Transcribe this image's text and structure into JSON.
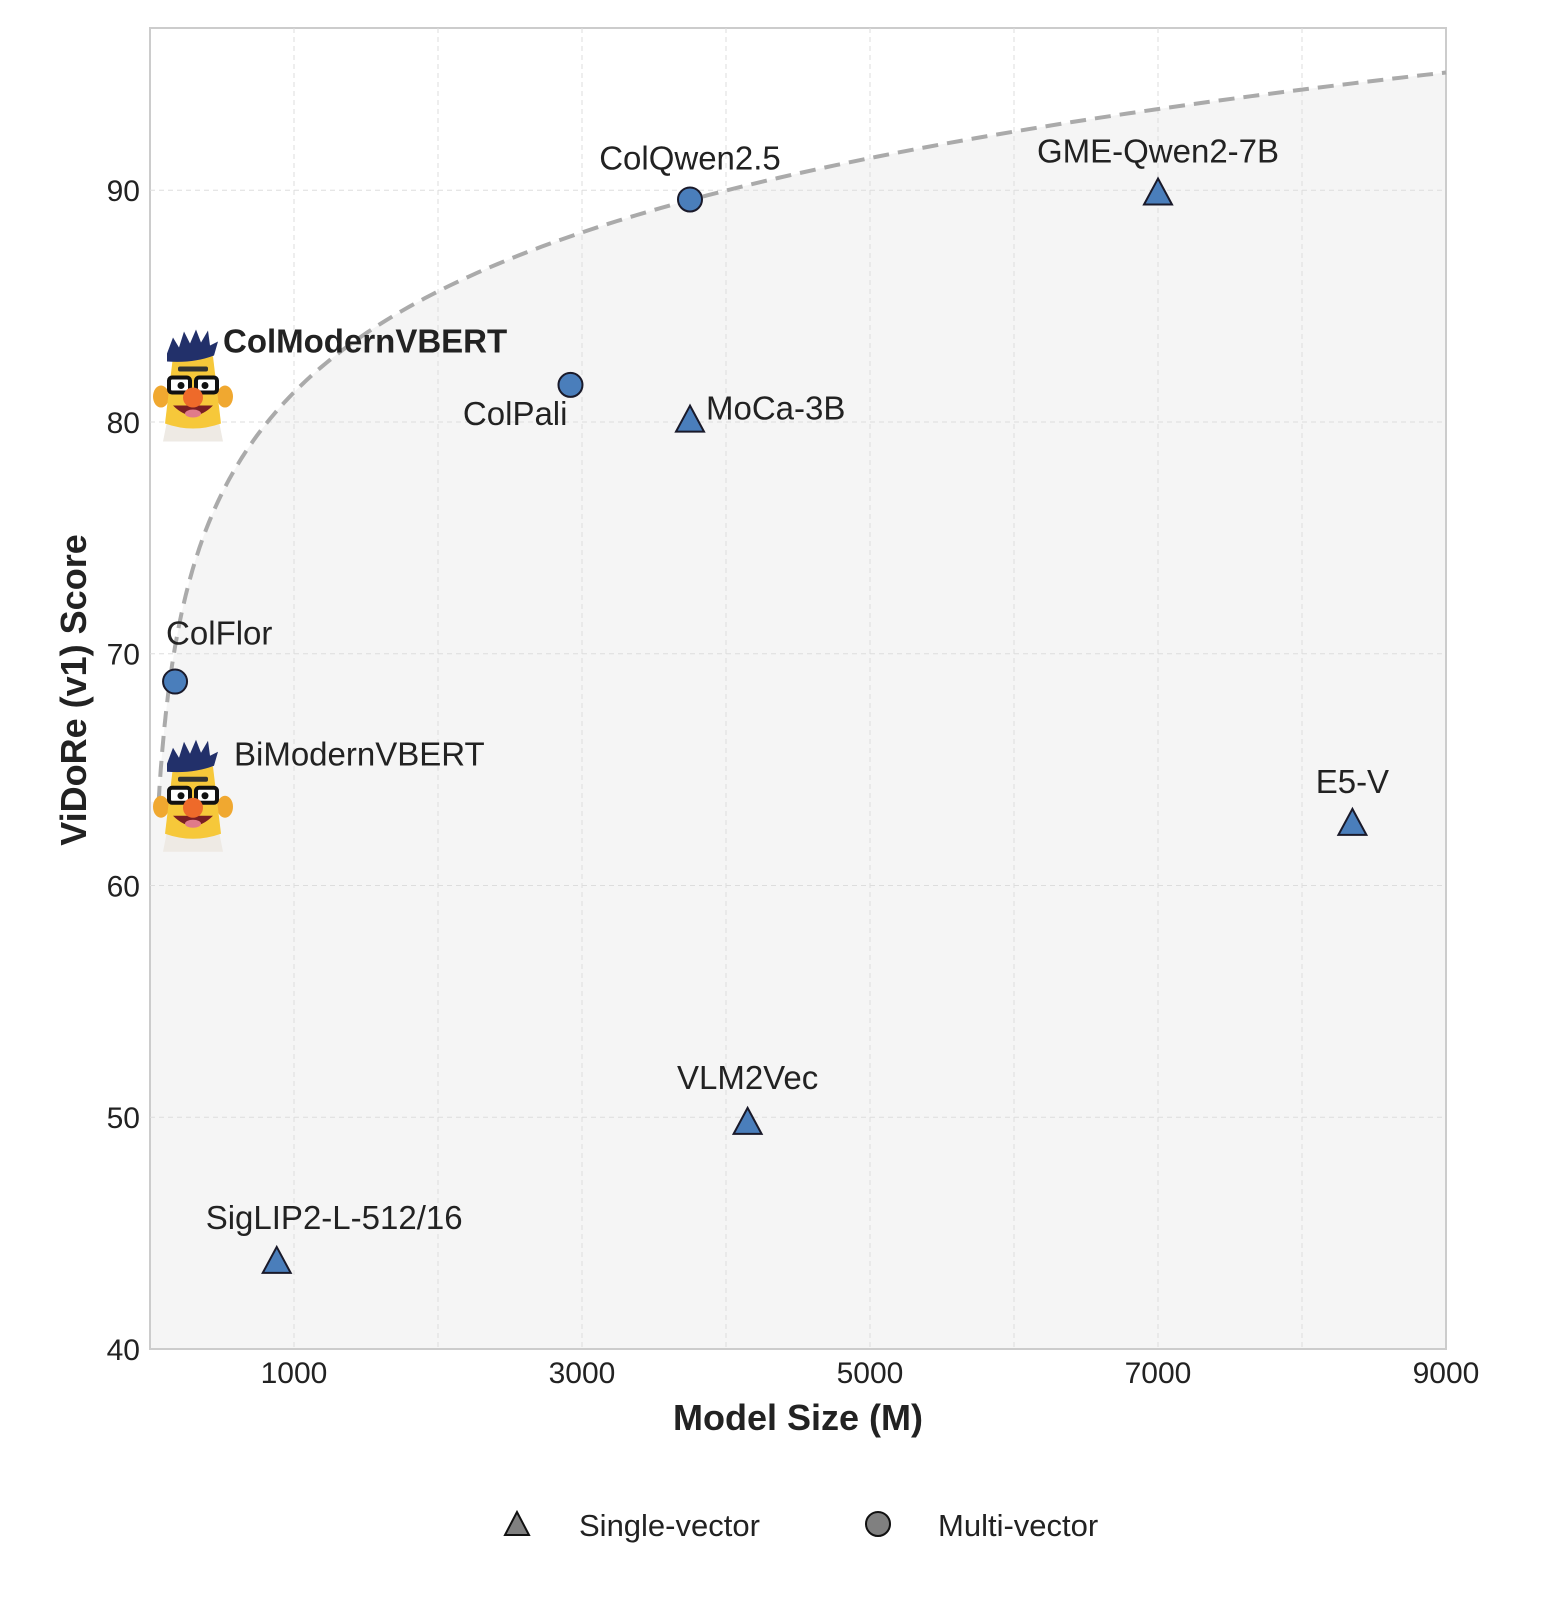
{
  "chart_data": {
    "type": "scatter",
    "title": "",
    "xlabel": "Model Size (M)",
    "ylabel": "ViDoRe (v1) Score",
    "xlim": [
      0,
      9000
    ],
    "ylim": [
      40,
      97
    ],
    "xticks": [
      1000,
      3000,
      5000,
      7000,
      9000
    ],
    "yticks": [
      40,
      50,
      60,
      70,
      80,
      90
    ],
    "grid": true,
    "marker_color": "#4a7ebb",
    "legend": {
      "placement": "bottom",
      "entries": [
        {
          "label": "Single-vector",
          "marker": "triangle",
          "color": "#808080"
        },
        {
          "label": "Multi-vector",
          "marker": "circle",
          "color": "#808080"
        }
      ]
    },
    "frontier_curve": {
      "style": "dashed",
      "color": "#aaaaaa",
      "shading_below": "#f5f5f5"
    },
    "points": [
      {
        "name": "ColQwen2.5",
        "x": 3750,
        "y": 89.6,
        "type": "Multi-vector"
      },
      {
        "name": "GME-Qwen2-7B",
        "x": 7000,
        "y": 89.9,
        "type": "Single-vector"
      },
      {
        "name": "ColModernVBERT",
        "x": 300,
        "y": 81.4,
        "type": "Multi-vector",
        "marker": "bert-icon",
        "highlight": true
      },
      {
        "name": "ColPali",
        "x": 2920,
        "y": 81.6,
        "type": "Multi-vector"
      },
      {
        "name": "MoCa-3B",
        "x": 3750,
        "y": 80.1,
        "type": "Single-vector"
      },
      {
        "name": "ColFlor",
        "x": 174,
        "y": 68.8,
        "type": "Multi-vector"
      },
      {
        "name": "BiModernVBERT",
        "x": 300,
        "y": 63.7,
        "type": "Single-vector",
        "marker": "bert-icon"
      },
      {
        "name": "E5-V",
        "x": 8350,
        "y": 62.7,
        "type": "Single-vector"
      },
      {
        "name": "VLM2Vec",
        "x": 4150,
        "y": 49.8,
        "type": "Single-vector"
      },
      {
        "name": "SigLIP2-L-512/16",
        "x": 880,
        "y": 43.8,
        "type": "Single-vector"
      }
    ]
  }
}
